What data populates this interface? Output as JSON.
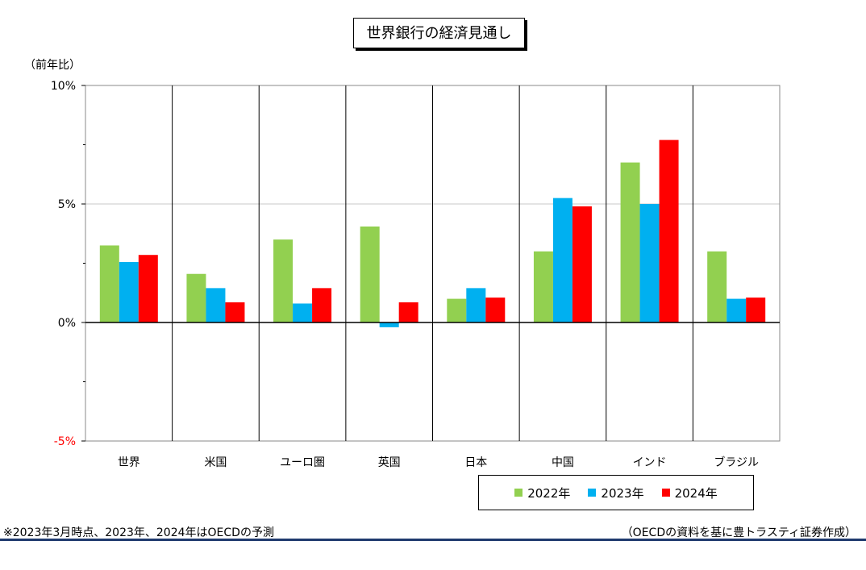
{
  "title": "世界銀行の経済見通し",
  "y_unit": "（前年比）",
  "footnote_left": "※2023年3月時点、2023年、2024年はOECDの予測",
  "footnote_right": "（OECDの資料を基に豊トラスティ証券作成）",
  "colors": {
    "2022": "#92d050",
    "2023": "#00b0f0",
    "2024": "#ff0000",
    "negative_tick": "#ff0000"
  },
  "chart_data": {
    "type": "bar",
    "categories": [
      "世界",
      "米国",
      "ユーロ圏",
      "英国",
      "日本",
      "中国",
      "インド",
      "ブラジル"
    ],
    "series": [
      {
        "name": "2022年",
        "values": [
          3.25,
          2.05,
          3.5,
          4.05,
          1.0,
          3.0,
          6.75,
          3.0
        ]
      },
      {
        "name": "2023年",
        "values": [
          2.55,
          1.45,
          0.8,
          -0.2,
          1.45,
          5.25,
          5.0,
          1.0
        ]
      },
      {
        "name": "2024年",
        "values": [
          2.85,
          0.85,
          1.45,
          0.85,
          1.05,
          4.9,
          7.7,
          1.05
        ]
      }
    ],
    "y_ticks": [
      "10%",
      "5%",
      "0%",
      "-5%"
    ],
    "y_tick_values": [
      10,
      5,
      0,
      -5
    ],
    "ylim": [
      -5,
      10
    ],
    "legend_position": "bottom-right",
    "grid": true
  }
}
